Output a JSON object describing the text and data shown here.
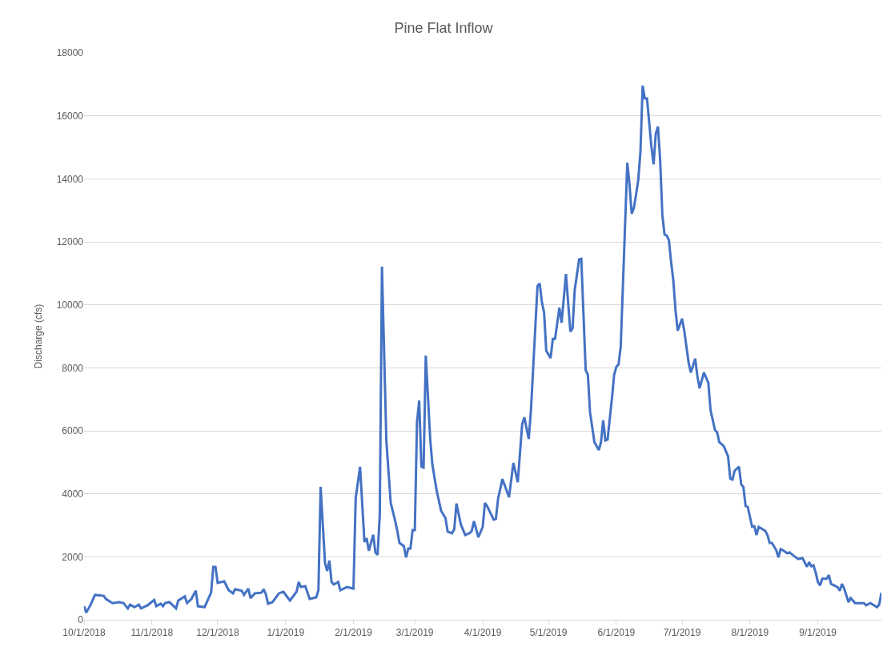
{
  "chart_data": {
    "type": "line",
    "title": "Pine Flat Inflow",
    "ylabel": "Discharge (cfs)",
    "x": [
      "2018-10-01",
      "2018-10-02",
      "2018-10-04",
      "2018-10-06",
      "2018-10-10",
      "2018-10-11",
      "2018-10-14",
      "2018-10-17",
      "2018-10-19",
      "2018-10-21",
      "2018-10-22",
      "2018-10-24",
      "2018-10-26",
      "2018-10-27",
      "2018-10-30",
      "2018-11-02",
      "2018-11-03",
      "2018-11-05",
      "2018-11-06",
      "2018-11-07",
      "2018-11-09",
      "2018-11-12",
      "2018-11-13",
      "2018-11-16",
      "2018-11-17",
      "2018-11-19",
      "2018-11-21",
      "2018-11-22",
      "2018-11-25",
      "2018-11-28",
      "2018-11-29",
      "2018-11-30",
      "2018-12-01",
      "2018-12-04",
      "2018-12-06",
      "2018-12-08",
      "2018-12-09",
      "2018-12-12",
      "2018-12-13",
      "2018-12-15",
      "2018-12-16",
      "2018-12-18",
      "2018-12-21",
      "2018-12-22",
      "2018-12-23",
      "2018-12-24",
      "2018-12-26",
      "2018-12-29",
      "2018-12-31",
      "2019-01-03",
      "2019-01-06",
      "2019-01-07",
      "2019-01-08",
      "2019-01-10",
      "2019-01-12",
      "2019-01-15",
      "2019-01-16",
      "2019-01-17",
      "2019-01-19",
      "2019-01-20",
      "2019-01-21",
      "2019-01-22",
      "2019-01-23",
      "2019-01-25",
      "2019-01-26",
      "2019-01-29",
      "2019-02-01",
      "2019-02-02",
      "2019-02-04",
      "2019-02-06",
      "2019-02-07",
      "2019-02-08",
      "2019-02-10",
      "2019-02-11",
      "2019-02-12",
      "2019-02-13",
      "2019-02-14",
      "2019-02-16",
      "2019-02-18",
      "2019-02-20",
      "2019-02-21",
      "2019-02-22",
      "2019-02-24",
      "2019-02-25",
      "2019-02-26",
      "2019-02-27",
      "2019-02-28",
      "2019-03-01",
      "2019-03-02",
      "2019-03-03",
      "2019-03-04",
      "2019-03-05",
      "2019-03-06",
      "2019-03-08",
      "2019-03-09",
      "2019-03-11",
      "2019-03-13",
      "2019-03-15",
      "2019-03-16",
      "2019-03-18",
      "2019-03-19",
      "2019-03-20",
      "2019-03-22",
      "2019-03-24",
      "2019-03-26",
      "2019-03-27",
      "2019-03-28",
      "2019-03-30",
      "2019-04-01",
      "2019-04-02",
      "2019-04-03",
      "2019-04-06",
      "2019-04-07",
      "2019-04-08",
      "2019-04-10",
      "2019-04-13",
      "2019-04-15",
      "2019-04-17",
      "2019-04-19",
      "2019-04-20",
      "2019-04-22",
      "2019-04-23",
      "2019-04-26",
      "2019-04-27",
      "2019-04-28",
      "2019-04-29",
      "2019-04-30",
      "2019-05-02",
      "2019-05-03",
      "2019-05-04",
      "2019-05-06",
      "2019-05-07",
      "2019-05-09",
      "2019-05-11",
      "2019-05-12",
      "2019-05-13",
      "2019-05-15",
      "2019-05-16",
      "2019-05-18",
      "2019-05-19",
      "2019-05-20",
      "2019-05-22",
      "2019-05-24",
      "2019-05-25",
      "2019-05-26",
      "2019-05-27",
      "2019-05-28",
      "2019-05-30",
      "2019-05-31",
      "2019-06-01",
      "2019-06-02",
      "2019-06-03",
      "2019-06-05",
      "2019-06-06",
      "2019-06-07",
      "2019-06-08",
      "2019-06-09",
      "2019-06-10",
      "2019-06-11",
      "2019-06-12",
      "2019-06-13",
      "2019-06-14",
      "2019-06-15",
      "2019-06-17",
      "2019-06-18",
      "2019-06-19",
      "2019-06-20",
      "2019-06-21",
      "2019-06-22",
      "2019-06-23",
      "2019-06-24",
      "2019-06-25",
      "2019-06-26",
      "2019-06-27",
      "2019-06-28",
      "2019-06-29",
      "2019-07-01",
      "2019-07-02",
      "2019-07-03",
      "2019-07-04",
      "2019-07-05",
      "2019-07-07",
      "2019-07-08",
      "2019-07-09",
      "2019-07-11",
      "2019-07-13",
      "2019-07-14",
      "2019-07-16",
      "2019-07-17",
      "2019-07-18",
      "2019-07-20",
      "2019-07-22",
      "2019-07-23",
      "2019-07-24",
      "2019-07-25",
      "2019-07-27",
      "2019-07-28",
      "2019-07-29",
      "2019-07-30",
      "2019-07-31",
      "2019-08-02",
      "2019-08-03",
      "2019-08-04",
      "2019-08-05",
      "2019-08-08",
      "2019-08-09",
      "2019-08-10",
      "2019-08-11",
      "2019-08-13",
      "2019-08-14",
      "2019-08-15",
      "2019-08-16",
      "2019-08-18",
      "2019-08-19",
      "2019-08-21",
      "2019-08-23",
      "2019-08-25",
      "2019-08-27",
      "2019-08-28",
      "2019-08-29",
      "2019-08-30",
      "2019-08-31",
      "2019-09-01",
      "2019-09-02",
      "2019-09-03",
      "2019-09-05",
      "2019-09-06",
      "2019-09-07",
      "2019-09-09",
      "2019-09-10",
      "2019-09-11",
      "2019-09-12",
      "2019-09-13",
      "2019-09-15",
      "2019-09-16",
      "2019-09-18",
      "2019-09-22",
      "2019-09-23",
      "2019-09-25",
      "2019-09-28",
      "2019-09-29",
      "2019-09-30"
    ],
    "series": [
      {
        "color": "#4472c4",
        "values": [
          430,
          230,
          480,
          790,
          760,
          660,
          530,
          560,
          530,
          360,
          480,
          400,
          480,
          360,
          460,
          630,
          430,
          510,
          430,
          530,
          560,
          360,
          610,
          740,
          530,
          660,
          920,
          430,
          400,
          860,
          1680,
          1680,
          1170,
          1220,
          940,
          840,
          970,
          920,
          790,
          990,
          690,
          840,
          860,
          970,
          810,
          510,
          560,
          840,
          890,
          610,
          890,
          1200,
          1040,
          1070,
          660,
          710,
          940,
          4220,
          1800,
          1550,
          1880,
          1200,
          1120,
          1200,
          940,
          1040,
          990,
          3860,
          4860,
          2470,
          2590,
          2190,
          2700,
          2140,
          2060,
          3330,
          11210,
          5690,
          3710,
          3150,
          2820,
          2440,
          2340,
          1980,
          2260,
          2260,
          2850,
          2850,
          6280,
          6960,
          4860,
          4830,
          8390,
          5770,
          4930,
          4090,
          3460,
          3230,
          2800,
          2750,
          2870,
          3690,
          3030,
          2690,
          2750,
          2820,
          3130,
          2620,
          2950,
          3710,
          3610,
          3180,
          3200,
          3840,
          4470,
          3890,
          4980,
          4370,
          6200,
          6430,
          5740,
          6630,
          10600,
          10680,
          10090,
          9760,
          8540,
          8310,
          8920,
          8920,
          9910,
          9430,
          10980,
          9150,
          9250,
          10470,
          11440,
          11460,
          7930,
          7780,
          6580,
          5640,
          5390,
          5640,
          6330,
          5690,
          5720,
          7040,
          7780,
          8030,
          8110,
          8670,
          12560,
          14510,
          13830,
          12890,
          13070,
          13500,
          13960,
          14850,
          16960,
          16550,
          16550,
          15020,
          14460,
          15430,
          15660,
          14590,
          12860,
          12230,
          12200,
          12050,
          11360,
          10780,
          9840,
          9180,
          9560,
          9180,
          8670,
          8160,
          7850,
          8290,
          7730,
          7350,
          7850,
          7520,
          6660,
          6030,
          5950,
          5640,
          5520,
          5190,
          4480,
          4450,
          4730,
          4860,
          4300,
          4220,
          3610,
          3580,
          2950,
          2970,
          2690,
          2950,
          2820,
          2690,
          2440,
          2440,
          2210,
          1980,
          2240,
          2210,
          2110,
          2140,
          2030,
          1930,
          1960,
          1680,
          1830,
          1700,
          1730,
          1500,
          1200,
          1090,
          1300,
          1300,
          1420,
          1140,
          1070,
          1040,
          920,
          1140,
          990,
          560,
          690,
          530,
          530,
          460,
          530,
          400,
          480,
          860
        ]
      }
    ],
    "xlim": [
      "2018-10-01",
      "2019-09-30"
    ],
    "xticks": [
      {
        "value": "2018-10-01",
        "label": "10/1/2018"
      },
      {
        "value": "2018-11-01",
        "label": "11/1/2018"
      },
      {
        "value": "2018-12-01",
        "label": "12/1/2018"
      },
      {
        "value": "2019-01-01",
        "label": "1/1/2019"
      },
      {
        "value": "2019-02-01",
        "label": "2/1/2019"
      },
      {
        "value": "2019-03-01",
        "label": "3/1/2019"
      },
      {
        "value": "2019-04-01",
        "label": "4/1/2019"
      },
      {
        "value": "2019-05-01",
        "label": "5/1/2019"
      },
      {
        "value": "2019-06-01",
        "label": "6/1/2019"
      },
      {
        "value": "2019-07-01",
        "label": "7/1/2019"
      },
      {
        "value": "2019-08-01",
        "label": "8/1/2019"
      },
      {
        "value": "2019-09-01",
        "label": "9/1/2019"
      }
    ],
    "ylim": [
      0,
      18000
    ],
    "yticks": [
      0,
      2000,
      4000,
      6000,
      8000,
      10000,
      12000,
      14000,
      16000,
      18000
    ],
    "grid": "y",
    "marker": "none",
    "line_style": "solid"
  }
}
